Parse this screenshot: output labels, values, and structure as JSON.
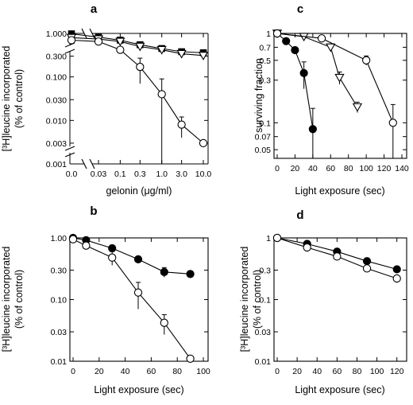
{
  "chart_data": [
    {
      "panel": "a",
      "type": "line",
      "ylog": true,
      "xlabel": "gelonin (μg/ml)",
      "ylabel_line1": "[³H]leucine incorporated",
      "ylabel_line2": "(% of control)",
      "y_ticks": [
        1.0,
        0.3,
        0.1,
        0.03,
        0.01,
        0.003,
        0.001
      ],
      "y_tick_labels": [
        "1.000",
        "0.300",
        "0.100",
        "0.030",
        "0.010",
        "0.003",
        "0.001"
      ],
      "x_tick_labels": [
        "0.0",
        "0.03",
        "0.1",
        "0.3",
        "1.0",
        "3.0",
        "10.0"
      ],
      "x_ticks": [
        0.03,
        0.1,
        0.3,
        1.0,
        3.0,
        10.0
      ],
      "x_zero_label": "0.0",
      "xlim": [
        0.03,
        10.0
      ],
      "ylim": [
        0.001,
        1.0
      ],
      "axis_break": true,
      "series": [
        {
          "marker": "filled-square",
          "x": [
            0,
            0.03,
            0.1,
            0.3,
            1.0,
            3.0,
            10.0
          ],
          "y": [
            0.98,
            0.82,
            0.7,
            0.55,
            0.45,
            0.38,
            0.36
          ],
          "err": [
            0,
            0,
            0,
            0.04,
            0.05,
            0.04,
            0.04
          ]
        },
        {
          "marker": "open-triangle",
          "x": [
            0,
            0.03,
            0.1,
            0.3,
            1.0,
            3.0,
            10.0
          ],
          "y": [
            0.8,
            0.74,
            0.65,
            0.5,
            0.42,
            0.34,
            0.31
          ],
          "err": [
            0,
            0,
            0,
            0,
            0,
            0.04,
            0.04
          ]
        },
        {
          "marker": "open-circle",
          "x": [
            0,
            0.03,
            0.1,
            0.3,
            1.0,
            3.0,
            10.0
          ],
          "y": [
            0.7,
            0.65,
            0.42,
            0.17,
            0.04,
            0.008,
            0.003
          ],
          "err": [
            0,
            0,
            0.03,
            0.1,
            0.05,
            0.004,
            0
          ]
        }
      ]
    },
    {
      "panel": "b",
      "type": "line",
      "ylog": true,
      "xlabel": "Light exposure (sec)",
      "ylabel_line1": "[³H]leucine incorporated",
      "ylabel_line2": "(% of control)",
      "y_ticks": [
        1.0,
        0.3,
        0.1,
        0.03,
        0.01
      ],
      "y_tick_labels": [
        "1.00",
        "0.30",
        "0.10",
        "0.03",
        "0.01"
      ],
      "x_ticks": [
        0,
        20,
        40,
        60,
        80,
        100
      ],
      "x_tick_labels": [
        "0",
        "20",
        "40",
        "60",
        "80",
        "100"
      ],
      "xlim": [
        0,
        100
      ],
      "ylim": [
        0.01,
        1.0
      ],
      "series": [
        {
          "marker": "filled-circle",
          "x": [
            0,
            10,
            30,
            50,
            70,
            90
          ],
          "y": [
            1.0,
            0.92,
            0.68,
            0.45,
            0.28,
            0.26
          ],
          "err": [
            0,
            0,
            0.05,
            0.05,
            0.05,
            0.03
          ]
        },
        {
          "marker": "open-circle",
          "x": [
            0,
            10,
            30,
            50,
            70,
            90
          ],
          "y": [
            0.95,
            0.75,
            0.48,
            0.13,
            0.042,
            0.011
          ],
          "err": [
            0,
            0,
            0.12,
            0.06,
            0.015,
            0
          ]
        }
      ]
    },
    {
      "panel": "c",
      "type": "line",
      "ylog": true,
      "xlabel": "Light exposure (sec)",
      "ylabel": "surviving fraction",
      "y_ticks": [
        1,
        0.7,
        0.5,
        0.3,
        0.1,
        0.07,
        0.05
      ],
      "y_tick_labels": [
        "1",
        "0.7",
        "0.5",
        "0.3",
        "0.1",
        "0.07",
        "0.05"
      ],
      "x_ticks": [
        0,
        20,
        40,
        60,
        80,
        100,
        120,
        140
      ],
      "x_tick_labels": [
        "0",
        "20",
        "40",
        "60",
        "80",
        "100",
        "120",
        "140"
      ],
      "xlim": [
        0,
        140
      ],
      "ylim": [
        0.04,
        1.0
      ],
      "series": [
        {
          "marker": "filled-circle",
          "x": [
            0,
            10,
            20,
            30,
            40
          ],
          "y": [
            1.0,
            0.82,
            0.65,
            0.36,
            0.085
          ],
          "err": [
            0,
            0,
            0,
            0.12,
            0.06
          ]
        },
        {
          "marker": "open-triangle",
          "x": [
            0,
            30,
            60,
            70,
            90
          ],
          "y": [
            1.0,
            0.92,
            0.7,
            0.32,
            0.15
          ],
          "err": [
            0,
            0,
            0,
            0.05,
            0.02
          ]
        },
        {
          "marker": "open-circle",
          "x": [
            0,
            50,
            100,
            130
          ],
          "y": [
            1.0,
            0.88,
            0.5,
            0.1
          ],
          "err": [
            0,
            0,
            0.06,
            0.06
          ]
        }
      ]
    },
    {
      "panel": "d",
      "type": "line",
      "ylog": true,
      "xlabel": "Light exposure (sec)",
      "ylabel_line1": "[³H]leucine incorporated",
      "ylabel_line2": "(% of control)",
      "y_ticks": [
        1,
        0.3,
        0.1,
        0.03,
        0.01
      ],
      "y_tick_labels": [
        "1",
        "0.3",
        "0.1",
        "0.03",
        "0.01"
      ],
      "x_ticks": [
        0,
        20,
        40,
        60,
        80,
        100,
        120
      ],
      "x_tick_labels": [
        "0",
        "20",
        "40",
        "60",
        "80",
        "100",
        "120"
      ],
      "xlim": [
        0,
        125
      ],
      "ylim": [
        0.01,
        1.0
      ],
      "series": [
        {
          "marker": "filled-circle",
          "x": [
            0,
            30,
            60,
            90,
            120
          ],
          "y": [
            1.0,
            0.8,
            0.6,
            0.42,
            0.31
          ],
          "err": [
            0,
            0,
            0.05,
            0.05,
            0
          ]
        },
        {
          "marker": "open-circle",
          "x": [
            0,
            30,
            60,
            90,
            120
          ],
          "y": [
            1.0,
            0.7,
            0.5,
            0.32,
            0.22
          ],
          "err": [
            0,
            0,
            0,
            0,
            0
          ]
        }
      ]
    }
  ]
}
